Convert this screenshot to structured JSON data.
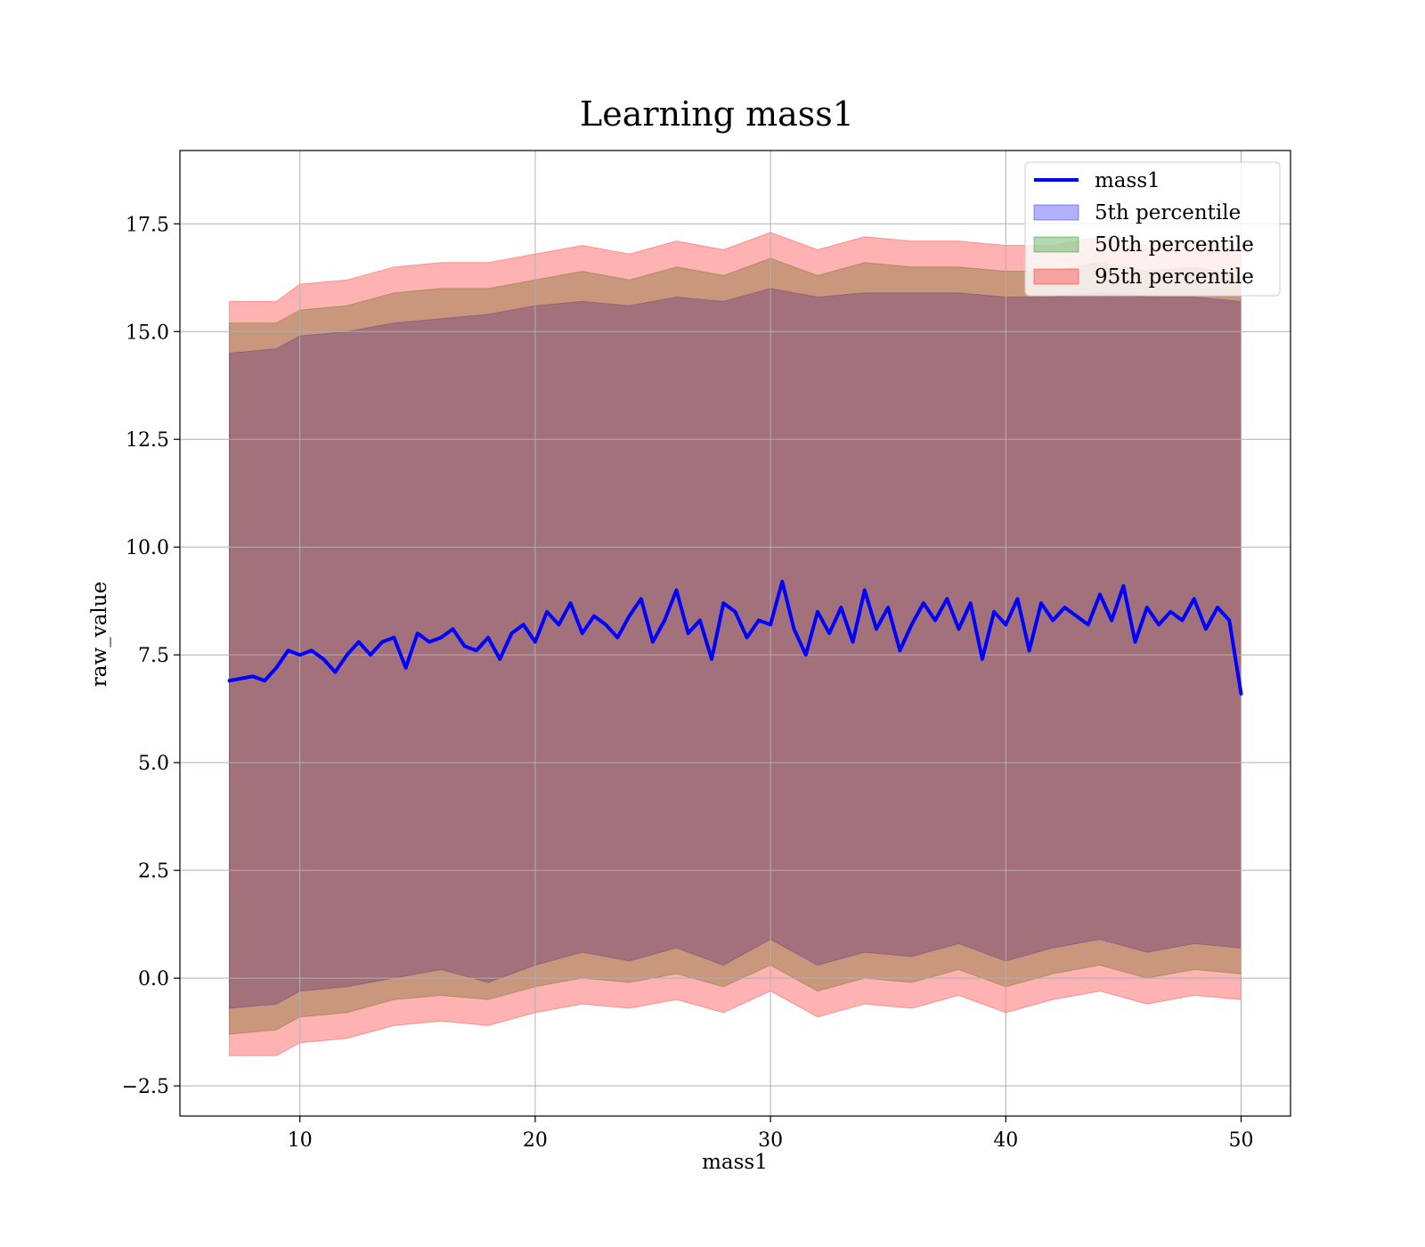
{
  "chart_data": {
    "type": "line",
    "title": "Learning mass1",
    "xlabel": "mass1",
    "ylabel": "raw_value",
    "xlim": [
      4.9,
      52.1
    ],
    "ylim": [
      -3.2,
      19.2
    ],
    "xticks": [
      10,
      20,
      30,
      40,
      50
    ],
    "xtick_labels": [
      "10",
      "20",
      "30",
      "40",
      "50"
    ],
    "yticks": [
      -2.5,
      0.0,
      2.5,
      5.0,
      7.5,
      10.0,
      12.5,
      15.0,
      17.5
    ],
    "ytick_labels": [
      "−2.5",
      "0.0",
      "2.5",
      "5.0",
      "7.5",
      "10.0",
      "12.5",
      "15.0",
      "17.5"
    ],
    "grid": true,
    "legend_position": "top-right",
    "series": [
      {
        "name": "mass1",
        "kind": "line",
        "color": "#0000ff",
        "x": [
          7.0,
          8.0,
          8.5,
          9.0,
          9.5,
          10.0,
          10.5,
          11.0,
          11.5,
          12.0,
          12.5,
          13.0,
          13.5,
          14.0,
          14.5,
          15.0,
          15.5,
          16.0,
          16.5,
          17.0,
          17.5,
          18.0,
          18.5,
          19.0,
          19.5,
          20.0,
          20.5,
          21.0,
          21.5,
          22.0,
          22.5,
          23.0,
          23.5,
          24.0,
          24.5,
          25.0,
          25.5,
          26.0,
          26.5,
          27.0,
          27.5,
          28.0,
          28.5,
          29.0,
          29.5,
          30.0,
          30.5,
          31.0,
          31.5,
          32.0,
          32.5,
          33.0,
          33.5,
          34.0,
          34.5,
          35.0,
          35.5,
          36.0,
          36.5,
          37.0,
          37.5,
          38.0,
          38.5,
          39.0,
          39.5,
          40.0,
          40.5,
          41.0,
          41.5,
          42.0,
          42.5,
          43.0,
          43.5,
          44.0,
          44.5,
          45.0,
          45.5,
          46.0,
          46.5,
          47.0,
          47.5,
          48.0,
          48.5,
          49.0,
          49.5,
          50.0
        ],
        "y": [
          6.9,
          7.0,
          6.9,
          7.2,
          7.6,
          7.5,
          7.6,
          7.4,
          7.1,
          7.5,
          7.8,
          7.5,
          7.8,
          7.9,
          7.2,
          8.0,
          7.8,
          7.9,
          8.1,
          7.7,
          7.6,
          7.9,
          7.4,
          8.0,
          8.2,
          7.8,
          8.5,
          8.2,
          8.7,
          8.0,
          8.4,
          8.2,
          7.9,
          8.4,
          8.8,
          7.8,
          8.3,
          9.0,
          8.0,
          8.3,
          7.4,
          8.7,
          8.5,
          7.9,
          8.3,
          8.2,
          9.2,
          8.1,
          7.5,
          8.5,
          8.0,
          8.6,
          7.8,
          9.0,
          8.1,
          8.6,
          7.6,
          8.2,
          8.7,
          8.3,
          8.8,
          8.1,
          8.7,
          7.4,
          8.5,
          8.2,
          8.8,
          7.6,
          8.7,
          8.3,
          8.6,
          8.4,
          8.2,
          8.9,
          8.3,
          9.1,
          7.8,
          8.6,
          8.2,
          8.5,
          8.3,
          8.8,
          8.1,
          8.6,
          8.3,
          6.6
        ]
      },
      {
        "name": "5th percentile",
        "kind": "band",
        "color": "#0000ff",
        "x": [
          7.0,
          9.0,
          10.0,
          12.0,
          14.0,
          16.0,
          18.0,
          20.0,
          22.0,
          24.0,
          26.0,
          28.0,
          30.0,
          32.0,
          34.0,
          36.0,
          38.0,
          40.0,
          42.0,
          44.0,
          46.0,
          48.0,
          50.0
        ],
        "lower": [
          -0.7,
          -0.6,
          -0.3,
          -0.2,
          0.0,
          0.2,
          -0.1,
          0.3,
          0.6,
          0.4,
          0.7,
          0.3,
          0.9,
          0.3,
          0.6,
          0.5,
          0.8,
          0.4,
          0.7,
          0.9,
          0.6,
          0.8,
          0.7
        ],
        "upper": [
          14.5,
          14.6,
          14.9,
          15.0,
          15.2,
          15.3,
          15.4,
          15.6,
          15.7,
          15.6,
          15.8,
          15.7,
          16.0,
          15.8,
          15.9,
          15.9,
          15.9,
          15.8,
          15.8,
          15.9,
          15.8,
          15.8,
          15.7
        ]
      },
      {
        "name": "50th percentile",
        "kind": "band",
        "color": "#008000",
        "x": [
          7.0,
          9.0,
          10.0,
          12.0,
          14.0,
          16.0,
          18.0,
          20.0,
          22.0,
          24.0,
          26.0,
          28.0,
          30.0,
          32.0,
          34.0,
          36.0,
          38.0,
          40.0,
          42.0,
          44.0,
          46.0,
          48.0,
          50.0
        ],
        "lower": [
          -1.3,
          -1.2,
          -0.9,
          -0.8,
          -0.5,
          -0.4,
          -0.5,
          -0.2,
          0.0,
          -0.1,
          0.1,
          -0.2,
          0.3,
          -0.3,
          0.0,
          -0.1,
          0.2,
          -0.2,
          0.1,
          0.3,
          0.0,
          0.2,
          0.1
        ],
        "upper": [
          15.2,
          15.2,
          15.5,
          15.6,
          15.9,
          16.0,
          16.0,
          16.2,
          16.4,
          16.2,
          16.5,
          16.3,
          16.7,
          16.3,
          16.6,
          16.5,
          16.5,
          16.4,
          16.4,
          16.6,
          16.4,
          16.5,
          16.3
        ]
      },
      {
        "name": "95th percentile",
        "kind": "band",
        "color": "#ff0000",
        "x": [
          7.0,
          9.0,
          10.0,
          12.0,
          14.0,
          16.0,
          18.0,
          20.0,
          22.0,
          24.0,
          26.0,
          28.0,
          30.0,
          32.0,
          34.0,
          36.0,
          38.0,
          40.0,
          42.0,
          44.0,
          46.0,
          48.0,
          50.0
        ],
        "lower": [
          -1.8,
          -1.8,
          -1.5,
          -1.4,
          -1.1,
          -1.0,
          -1.1,
          -0.8,
          -0.6,
          -0.7,
          -0.5,
          -0.8,
          -0.3,
          -0.9,
          -0.6,
          -0.7,
          -0.4,
          -0.8,
          -0.5,
          -0.3,
          -0.6,
          -0.4,
          -0.5
        ],
        "upper": [
          15.7,
          15.7,
          16.1,
          16.2,
          16.5,
          16.6,
          16.6,
          16.8,
          17.0,
          16.8,
          17.1,
          16.9,
          17.3,
          16.9,
          17.2,
          17.1,
          17.1,
          17.0,
          17.0,
          17.2,
          17.0,
          17.1,
          16.9
        ]
      }
    ]
  }
}
